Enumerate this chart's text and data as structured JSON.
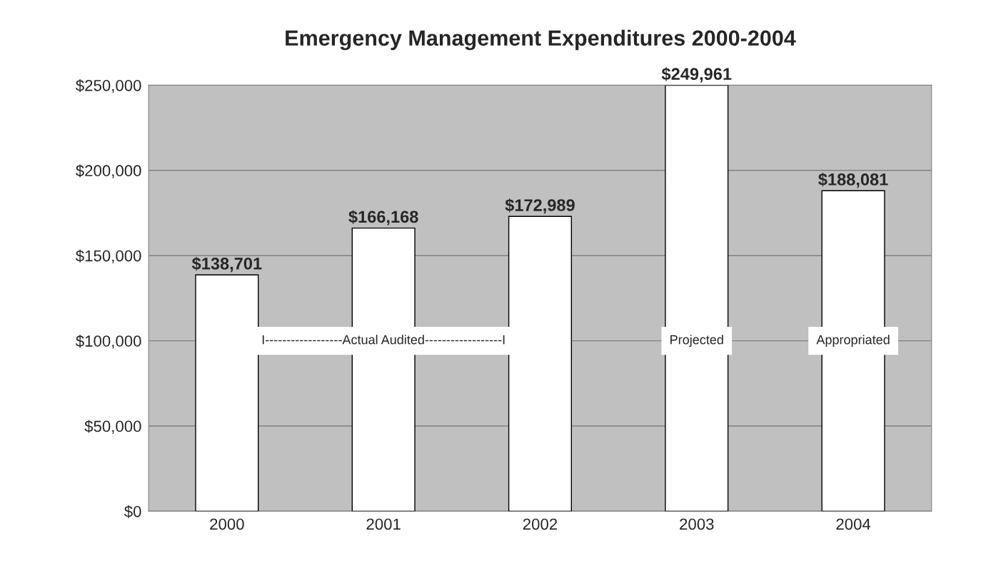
{
  "chart_data": {
    "type": "bar",
    "title": "Emergency Management Expenditures 2000-2004",
    "categories": [
      "2000",
      "2001",
      "2002",
      "2003",
      "2004"
    ],
    "values": [
      138701,
      166168,
      172989,
      249961,
      188081
    ],
    "value_labels": [
      "$138,701",
      "$166,168",
      "$172,989",
      "$249,961",
      "$188,081"
    ],
    "color": "#ffffff",
    "ylim": [
      0,
      250000
    ],
    "yticks": [
      {
        "value": 0,
        "label": "$0"
      },
      {
        "value": 50000,
        "label": "$50,000"
      },
      {
        "value": 100000,
        "label": "$100,000"
      },
      {
        "value": 150000,
        "label": "$150,000"
      },
      {
        "value": 200000,
        "label": "$200,000"
      },
      {
        "value": 250000,
        "label": "$250,000"
      }
    ],
    "grid": "y",
    "annotations": [
      "I------------------Actual Audited------------------I",
      "Projected",
      "Appropriated"
    ]
  }
}
